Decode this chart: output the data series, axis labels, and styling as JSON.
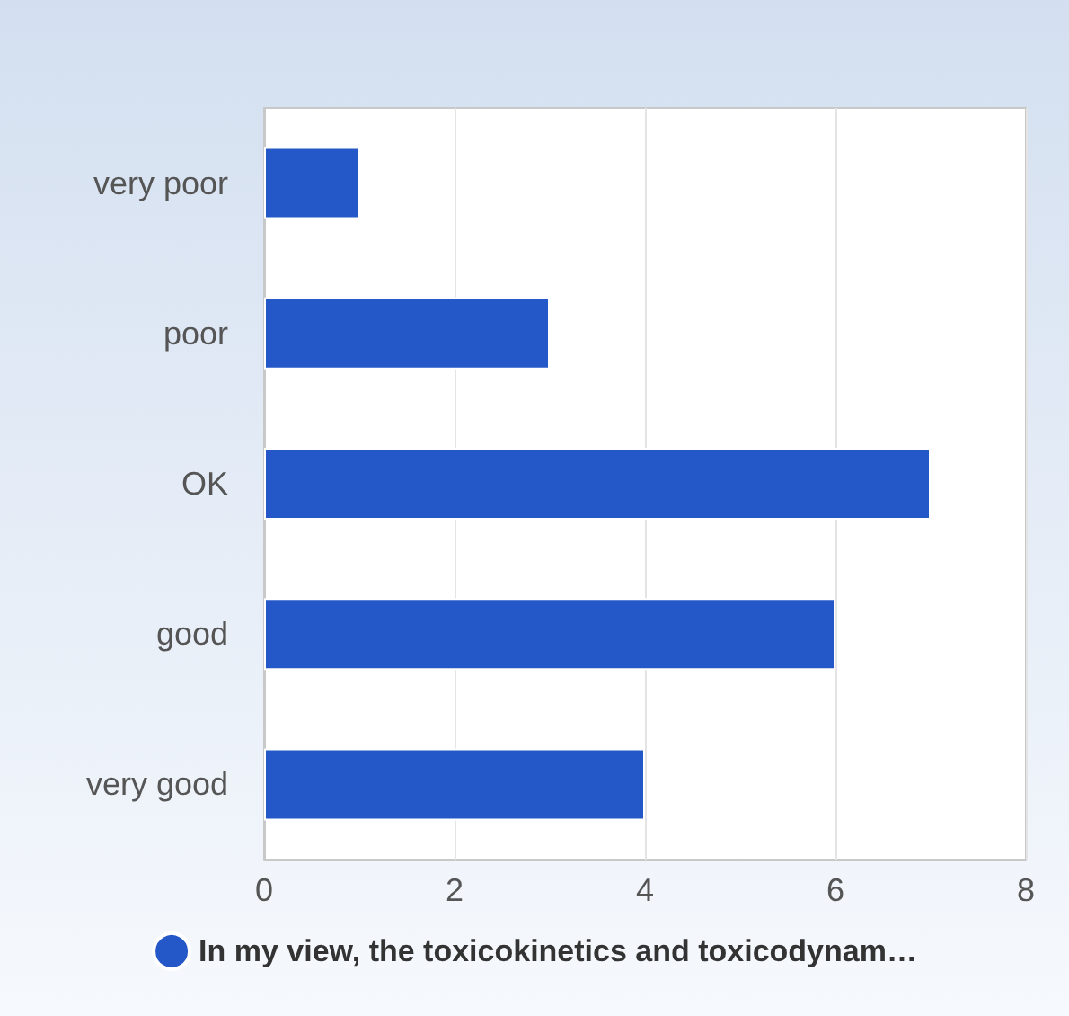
{
  "chart_data": {
    "type": "bar",
    "orientation": "horizontal",
    "categories": [
      "very poor",
      "poor",
      "OK",
      "good",
      "very good"
    ],
    "series": [
      {
        "name": "In my view, the toxicokinetics and toxicodynam…",
        "color": "#2458c8",
        "values": [
          1,
          3,
          7,
          6,
          4
        ]
      }
    ],
    "xlim": [
      0,
      8
    ],
    "xticks": [
      0,
      2,
      4,
      6,
      8
    ],
    "grid": "x",
    "legend": "bottom"
  }
}
